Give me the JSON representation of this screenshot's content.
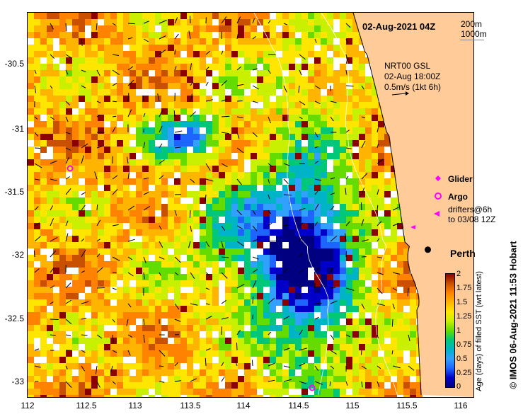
{
  "header": {
    "timestamp": "02-Aug-2021 04Z",
    "depth_contour_1": "200m",
    "depth_contour_2": "1000m"
  },
  "current_info": {
    "line1": "NRT00 GSL",
    "line2": "02-Aug 18:00Z",
    "line3": "0.5m/s (1kt 6h)"
  },
  "legend": {
    "glider": "Glider",
    "argo": "Argo",
    "drifters_line1": "drifters@6h",
    "drifters_line2": "to 03/08 12Z",
    "glider_color": "#ff00ff",
    "argo_color": "#ff00ff",
    "drifter_color": "#ff00ff"
  },
  "place": {
    "label": "Perth",
    "lon": 115.86,
    "lat": -31.95
  },
  "axes": {
    "x_ticks": [
      "112",
      "112.5",
      "113",
      "113.5",
      "114",
      "114.5",
      "115",
      "115.5",
      "116"
    ],
    "y_ticks": [
      "-30.5",
      "-31",
      "-31.5",
      "-32",
      "-32.5",
      "-33"
    ],
    "lon_range": [
      112,
      116.3
    ],
    "lat_range": [
      -30.1,
      -33.1
    ]
  },
  "colorbar": {
    "ticks": [
      "2",
      "1.75",
      "1.5",
      "1.25",
      "1",
      "0.75",
      "0.5",
      "0.25",
      "0"
    ],
    "label": "Age (days) of filled SST (wrt latest)",
    "colors": [
      "#000080",
      "#0000c8",
      "#1e64ff",
      "#32a0ff",
      "#00b4c8",
      "#00c878",
      "#64dc00",
      "#c8f000",
      "#ffe600",
      "#ffb400",
      "#ff8200",
      "#c85000",
      "#8b0000"
    ]
  },
  "credit": "©  IMOS 06-Aug-2021 11:53 Hobart",
  "colors": {
    "land": "#ffcc99",
    "coast": "#000000",
    "contour": "#ffffff"
  }
}
